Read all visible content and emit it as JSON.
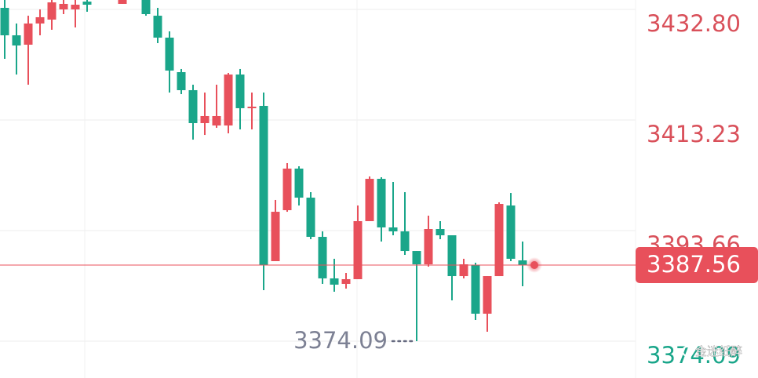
{
  "chart_data": {
    "type": "candlestick",
    "categories": [
      null,
      null,
      null,
      null,
      null,
      null,
      null,
      null,
      null,
      null,
      null,
      null,
      null,
      null,
      null,
      null,
      null,
      null,
      null,
      null,
      null,
      null,
      null,
      null,
      null,
      null,
      null,
      null,
      null,
      null,
      null,
      null,
      null,
      null,
      null,
      null,
      null,
      null,
      null,
      null,
      null,
      null,
      null,
      null,
      null
    ],
    "open": [
      3433.08,
      3428.22,
      3426.56,
      3430.31,
      3431.0,
      3432.8,
      3432.8,
      3434.19,
      3435.86,
      3437.25,
      3433.78,
      3435.16,
      3435.16,
      3431.69,
      3427.81,
      3421.7,
      3418.51,
      3412.68,
      3412.26,
      3412.26,
      3421.28,
      3415.32,
      3415.73,
      3388.25,
      3397.27,
      3404.63,
      3399.49,
      3392.55,
      3385.2,
      3384.23,
      3385.06,
      3395.33,
      3402.82,
      3394.22,
      3393.52,
      3390.05,
      3387.69,
      3393.94,
      3392.83,
      3385.61,
      3387.56,
      3378.95,
      3385.61,
      3398.1,
      3388.39
    ],
    "high": [
      3434.47,
      3430.31,
      3431.69,
      3432.8,
      3435.86,
      3435.16,
      3435.86,
      3435.86,
      3438.63,
      3438.63,
      3435.86,
      3437.25,
      3435.86,
      3433.08,
      3428.92,
      3422.26,
      3419.48,
      3418.09,
      3419.48,
      3421.56,
      3422.26,
      3418.09,
      3418.09,
      3399.08,
      3405.6,
      3405.04,
      3400.46,
      3393.52,
      3388.67,
      3386.17,
      3398.1,
      3403.24,
      3403.1,
      3402.27,
      3400.46,
      3390.05,
      3396.3,
      3395.33,
      3392.83,
      3388.67,
      3387.97,
      3385.61,
      3398.66,
      3400.32,
      3391.72
    ],
    "low": [
      3424.06,
      3421.28,
      3419.48,
      3428.22,
      3429.2,
      3431.97,
      3429.61,
      3432.39,
      3435.16,
      3435.16,
      3433.78,
      3434.47,
      3431.69,
      3426.84,
      3418.09,
      3417.81,
      3409.76,
      3410.59,
      3411.85,
      3410.87,
      3411.57,
      3411.57,
      3383.11,
      3388.25,
      3396.99,
      3398.1,
      3392.14,
      3384.23,
      3382.84,
      3383.39,
      3385.06,
      3395.33,
      3391.72,
      3392.83,
      3389.36,
      3374.09,
      3387.28,
      3392.14,
      3381.31,
      3385.2,
      3377.84,
      3375.76,
      3385.61,
      3388.25,
      3383.81
    ],
    "close": [
      3428.22,
      3426.42,
      3430.31,
      3431.42,
      3434.05,
      3433.78,
      3433.64,
      3433.64,
      3437.25,
      3435.86,
      3435.16,
      3435.86,
      3431.97,
      3427.81,
      3421.98,
      3418.51,
      3412.68,
      3413.93,
      3413.93,
      3421.28,
      3415.32,
      3415.59,
      3387.56,
      3396.99,
      3404.63,
      3399.49,
      3392.55,
      3385.2,
      3384.09,
      3385.06,
      3395.33,
      3402.82,
      3394.22,
      3393.52,
      3390.05,
      3387.69,
      3393.94,
      3392.83,
      3385.61,
      3387.69,
      3378.95,
      3385.61,
      3398.38,
      3388.67,
      3387.56
    ],
    "up_color": "#e8505b",
    "down_color": "#1aa68a",
    "ylim": [
      3367.57,
      3434.47
    ],
    "yticks": [
      {
        "value": 3432.8,
        "label": "3432.80"
      },
      3413.23,
      3393.66,
      3374.09
    ],
    "grid": true,
    "last_price": {
      "value": 3387.56,
      "color": "#e8505b"
    },
    "low_annotation": {
      "value": 3374.09
    },
    "watermark": "金迷纸醉"
  }
}
